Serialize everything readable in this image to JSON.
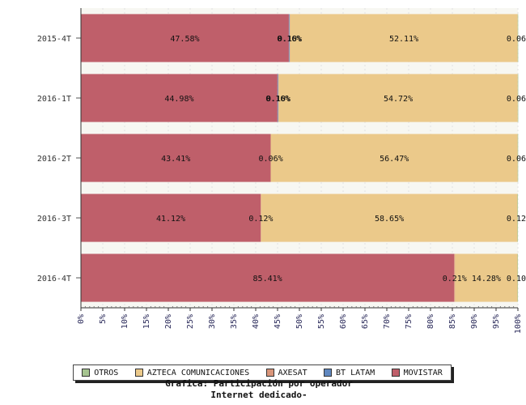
{
  "chart_data": {
    "type": "bar",
    "orientation": "horizontal",
    "stacked": true,
    "title": "Grafica: Participación por operador",
    "subtitle": "Internet dedicado-",
    "categories": [
      "2015-4T",
      "2016-1T",
      "2016-2T",
      "2016-3T",
      "2016-4T"
    ],
    "series": [
      {
        "name": "MOVISTAR",
        "color": "#bf5f6a",
        "values": [
          47.58,
          44.98,
          43.41,
          41.12,
          85.41
        ],
        "labels": [
          "47.58%",
          "44.98%",
          "43.41%",
          "41.12%",
          "85.41%"
        ]
      },
      {
        "name": "BT LATAM",
        "color": "#5f87bf",
        "values": [
          0.16,
          0.16,
          0,
          0,
          0
        ],
        "labels": [
          "0.16%",
          "0.16%",
          "",
          "",
          ""
        ]
      },
      {
        "name": "AXESAT",
        "color": "#d9957a",
        "values": [
          0.1,
          0.1,
          0.06,
          0.12,
          0.21
        ],
        "labels": [
          "0.10%",
          "0.10%",
          "0.06%",
          "0.12%",
          "0.21%"
        ]
      },
      {
        "name": "AZTECA COMUNICACIONES",
        "color": "#ebc98a",
        "values": [
          52.11,
          54.72,
          56.47,
          58.65,
          14.28
        ],
        "labels": [
          "52.11%",
          "54.72%",
          "56.47%",
          "58.65%",
          "14.28%"
        ]
      },
      {
        "name": "OTROS",
        "color": "#a6c490",
        "values": [
          0.06,
          0.06,
          0.06,
          0.12,
          0.1
        ],
        "labels": [
          "0.06",
          "0.06",
          "0.06",
          "0.12",
          "0.10"
        ]
      }
    ],
    "legend_order": [
      "OTROS",
      "AZTECA COMUNICACIONES",
      "AXESAT",
      "BT LATAM",
      "MOVISTAR"
    ],
    "xlim": [
      0,
      100
    ],
    "xticks": [
      "0%",
      "5%",
      "10%",
      "15%",
      "20%",
      "25%",
      "30%",
      "35%",
      "40%",
      "45%",
      "50%",
      "55%",
      "60%",
      "65%",
      "70%",
      "75%",
      "80%",
      "85%",
      "90%",
      "95%",
      "100%"
    ],
    "grid": true,
    "legend_position": "bottom"
  }
}
